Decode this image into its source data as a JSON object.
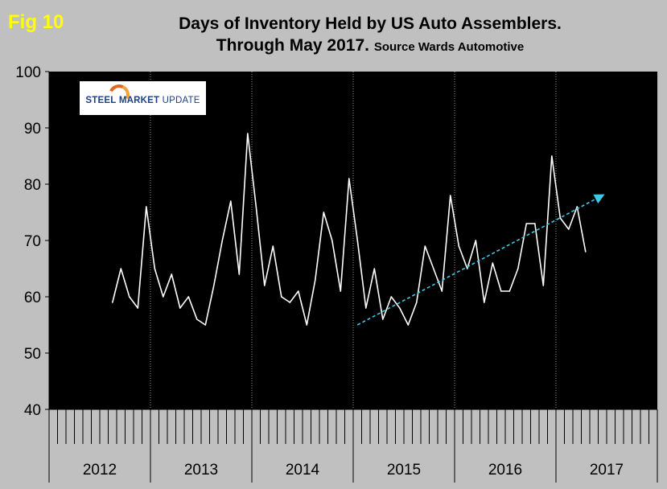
{
  "fig_label": "Fig 10",
  "title_line1": "Days of Inventory Held by US Auto Assemblers.",
  "title_line2": "Through May 2017.",
  "title_source": "Source Wards Automotive",
  "logo": {
    "word1": "STEEL",
    "word2": "MARKET",
    "word3": "UPDATE"
  },
  "colors": {
    "background": "#c0c0c0",
    "plot": "#000000",
    "series": "#ffffff",
    "trend": "#3ec8e6",
    "fig_label": "#ffff00"
  },
  "chart_data": {
    "type": "line",
    "title": "Days of Inventory Held by US Auto Assemblers. Through May 2017.",
    "ylim": [
      40,
      100
    ],
    "yticks": [
      40,
      50,
      60,
      70,
      80,
      90,
      100
    ],
    "years": [
      "2012",
      "2013",
      "2014",
      "2015",
      "2016",
      "2017"
    ],
    "months_per_year": 12,
    "grid": "vertical dotted at year boundaries",
    "series": [
      {
        "start": "Aug 2012",
        "values": [
          59,
          65,
          60,
          58,
          76,
          65,
          60,
          64,
          58,
          60,
          56,
          55,
          62,
          70,
          77,
          64,
          89,
          76,
          62,
          69,
          60,
          59,
          61,
          55,
          63,
          75,
          70,
          61,
          81,
          70,
          58,
          65,
          56,
          60,
          58,
          55,
          59,
          69,
          65,
          61,
          78,
          69,
          65,
          70,
          59,
          66,
          61,
          61,
          65,
          73,
          73,
          62,
          85,
          74,
          72,
          76,
          68
        ]
      }
    ],
    "trendline": {
      "from": [
        "Jan 2015",
        55
      ],
      "to": [
        "Jun 2017",
        78
      ]
    }
  }
}
